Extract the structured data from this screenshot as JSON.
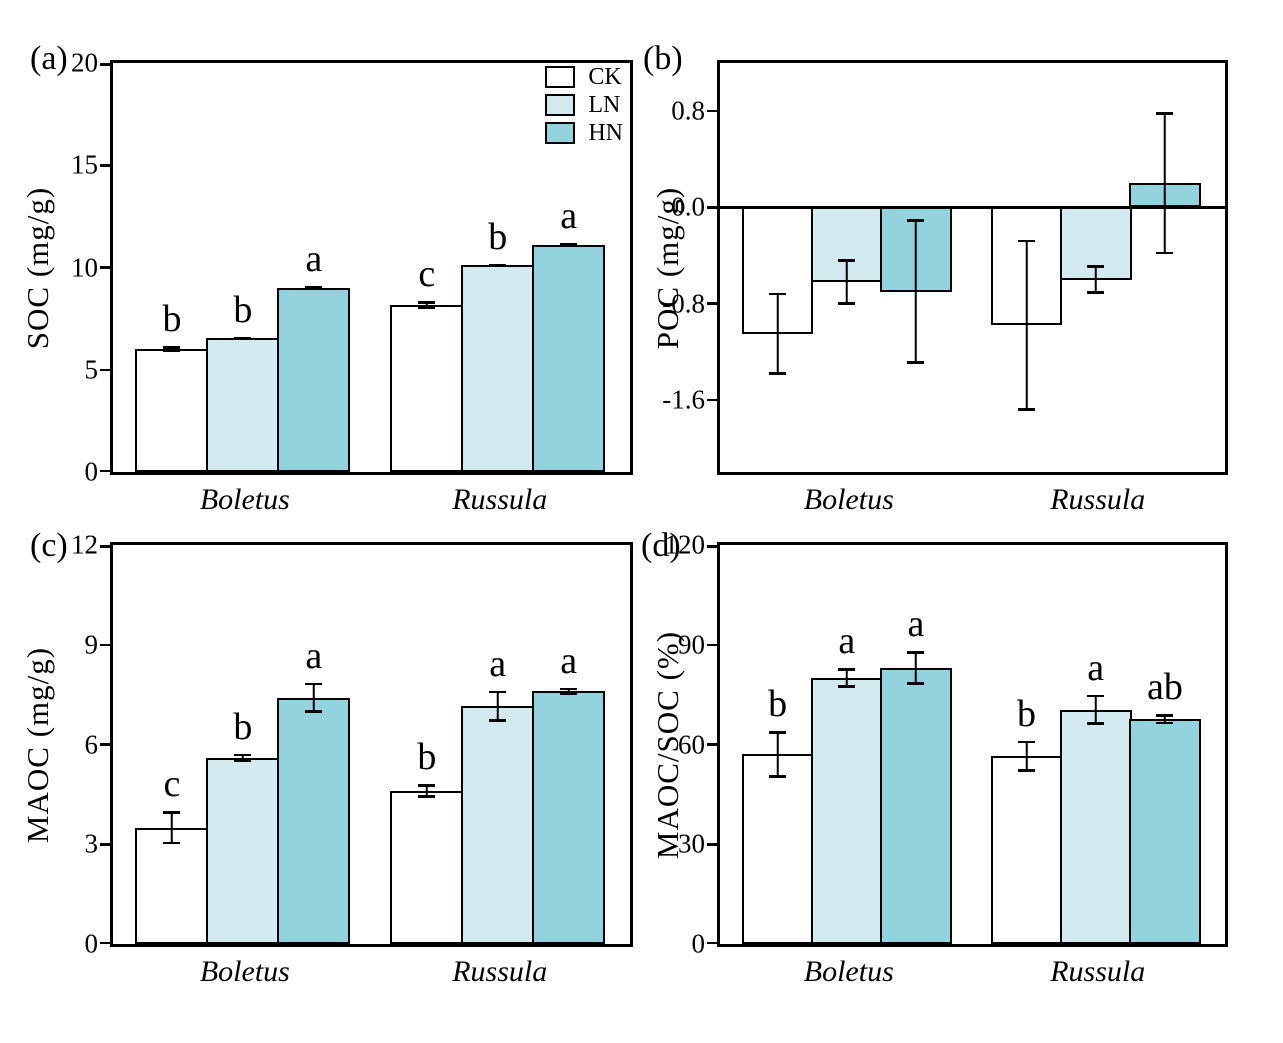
{
  "figure": {
    "background": "#ffffff",
    "axis_color": "#000000"
  },
  "legend": {
    "position": "top-right of panel (a)",
    "entries": [
      {
        "label": "CK",
        "color": "#ffffff"
      },
      {
        "label": "LN",
        "color": "#d2eaf0"
      },
      {
        "label": "HN",
        "color": "#92d3dd"
      }
    ]
  },
  "chart_data": [
    {
      "type": "bar",
      "panel": "(a)",
      "ylabel": "SOC (mg/g)",
      "ylim": [
        0,
        20
      ],
      "yticks": [
        0,
        5,
        10,
        15,
        20
      ],
      "ytick_labels": [
        "0",
        "5",
        "10",
        "15",
        "20"
      ],
      "categories": [
        "Boletus",
        "Russula"
      ],
      "series": [
        "CK",
        "LN",
        "HN"
      ],
      "grid": false,
      "legend_visible": true,
      "zero_line": false,
      "groups": [
        {
          "category": "Boletus",
          "bars": [
            {
              "series": "CK",
              "value": 6.0,
              "error": 0.15,
              "letter": "b"
            },
            {
              "series": "LN",
              "value": 6.55,
              "error": 0.07,
              "letter": "b"
            },
            {
              "series": "HN",
              "value": 9.0,
              "error": 0.08,
              "letter": "a"
            }
          ]
        },
        {
          "category": "Russula",
          "bars": [
            {
              "series": "CK",
              "value": 8.15,
              "error": 0.2,
              "letter": "c"
            },
            {
              "series": "LN",
              "value": 10.1,
              "error": 0.06,
              "letter": "b"
            },
            {
              "series": "HN",
              "value": 11.1,
              "error": 0.12,
              "letter": "a"
            }
          ]
        }
      ]
    },
    {
      "type": "bar",
      "panel": "(b)",
      "ylabel": "POC (mg/g)",
      "ylim": [
        -2.2,
        1.2
      ],
      "yticks": [
        0.8,
        0.0,
        -0.8,
        -1.6
      ],
      "ytick_labels": [
        "0.8",
        "0.0",
        "-0.8",
        "-1.6"
      ],
      "categories": [
        "Boletus",
        "Russula"
      ],
      "series": [
        "CK",
        "LN",
        "HN"
      ],
      "grid": false,
      "legend_visible": false,
      "zero_line": true,
      "groups": [
        {
          "category": "Boletus",
          "bars": [
            {
              "series": "CK",
              "value": -1.05,
              "error": 0.34,
              "letter": ""
            },
            {
              "series": "LN",
              "value": -0.62,
              "error": 0.19,
              "letter": ""
            },
            {
              "series": "HN",
              "value": -0.7,
              "error": 0.6,
              "letter": ""
            }
          ]
        },
        {
          "category": "Russula",
          "bars": [
            {
              "series": "CK",
              "value": -0.98,
              "error": 0.71,
              "letter": ""
            },
            {
              "series": "LN",
              "value": -0.6,
              "error": 0.12,
              "letter": ""
            },
            {
              "series": "HN",
              "value": 0.2,
              "error": 0.59,
              "letter": ""
            }
          ]
        }
      ]
    },
    {
      "type": "bar",
      "panel": "(c)",
      "ylabel": "MAOC (mg/g)",
      "ylim": [
        0,
        12
      ],
      "yticks": [
        0,
        3,
        6,
        9,
        12
      ],
      "ytick_labels": [
        "0",
        "3",
        "6",
        "9",
        "12"
      ],
      "categories": [
        "Boletus",
        "Russula"
      ],
      "series": [
        "CK",
        "LN",
        "HN"
      ],
      "grid": false,
      "legend_visible": false,
      "zero_line": false,
      "groups": [
        {
          "category": "Boletus",
          "bars": [
            {
              "series": "CK",
              "value": 3.5,
              "error": 0.5,
              "letter": "c"
            },
            {
              "series": "LN",
              "value": 5.6,
              "error": 0.12,
              "letter": "b"
            },
            {
              "series": "HN",
              "value": 7.4,
              "error": 0.45,
              "letter": "a"
            }
          ]
        },
        {
          "category": "Russula",
          "bars": [
            {
              "series": "CK",
              "value": 4.6,
              "error": 0.2,
              "letter": "b"
            },
            {
              "series": "LN",
              "value": 7.15,
              "error": 0.47,
              "letter": "a"
            },
            {
              "series": "HN",
              "value": 7.6,
              "error": 0.1,
              "letter": "a"
            }
          ]
        }
      ]
    },
    {
      "type": "bar",
      "panel": "(d)",
      "ylabel": "MAOC/SOC (%)",
      "ylim": [
        0,
        120
      ],
      "yticks": [
        0,
        30,
        60,
        90,
        120
      ],
      "ytick_labels": [
        "0",
        "30",
        "60",
        "90",
        "120"
      ],
      "categories": [
        "Boletus",
        "Russula"
      ],
      "series": [
        "CK",
        "LN",
        "HN"
      ],
      "grid": false,
      "legend_visible": false,
      "zero_line": false,
      "groups": [
        {
          "category": "Boletus",
          "bars": [
            {
              "series": "CK",
              "value": 57.0,
              "error": 7.0,
              "letter": "b"
            },
            {
              "series": "LN",
              "value": 80.0,
              "error": 3.0,
              "letter": "a"
            },
            {
              "series": "HN",
              "value": 83.0,
              "error": 5.0,
              "letter": "a"
            }
          ]
        },
        {
          "category": "Russula",
          "bars": [
            {
              "series": "CK",
              "value": 56.5,
              "error": 4.7,
              "letter": "b"
            },
            {
              "series": "LN",
              "value": 70.5,
              "error": 4.5,
              "letter": "a"
            },
            {
              "series": "HN",
              "value": 67.6,
              "error": 1.5,
              "letter": "ab"
            }
          ]
        }
      ]
    }
  ]
}
